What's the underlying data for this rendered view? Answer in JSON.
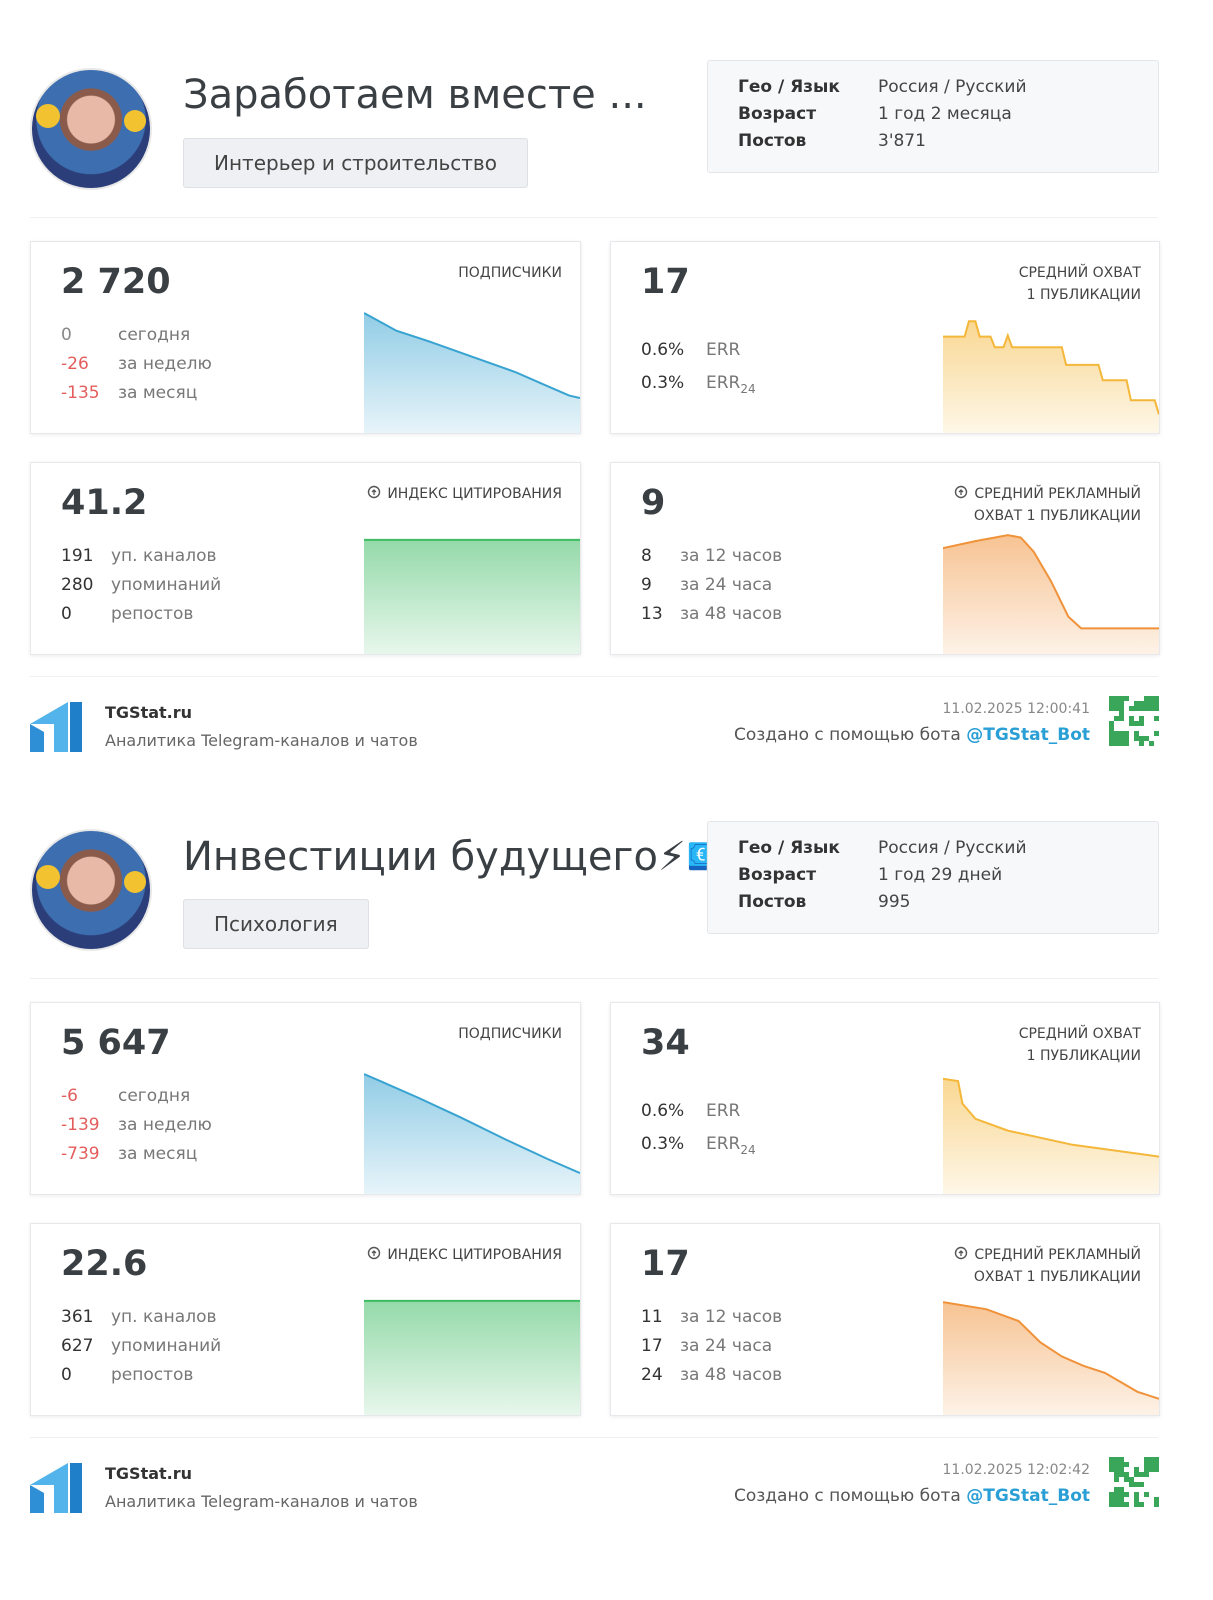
{
  "reports": [
    {
      "channel": {
        "title": "Заработаем вместе ...",
        "category": "Интерьер и строительство"
      },
      "info": [
        {
          "label": "Гео / Язык",
          "value": "Россия / Русский"
        },
        {
          "label": "Возраст",
          "value": "1 год 2 месяца"
        },
        {
          "label": "Постов",
          "value": "3'871"
        }
      ],
      "subscribers": {
        "label": [
          "ПОДПИСЧИКИ"
        ],
        "total": "2 720",
        "rows": [
          {
            "value": 0,
            "label": "сегодня"
          },
          {
            "value": -26,
            "label": "за неделю"
          },
          {
            "value": -135,
            "label": "за месяц"
          }
        ]
      },
      "reach": {
        "label": [
          "СРЕДНИЙ ОХВАТ",
          "1 ПУБЛИКАЦИИ"
        ],
        "total": 17,
        "rows": [
          {
            "value": "0.6%",
            "label": "ERR"
          },
          {
            "value": "0.3%",
            "label": "ERR",
            "sub": 24
          }
        ]
      },
      "citation": {
        "label": [
          "ИНДЕКС ЦИТИРОВАНИЯ"
        ],
        "total": 41.2,
        "rows": [
          {
            "value": 191,
            "label": "уп. каналов"
          },
          {
            "value": 280,
            "label": "упоминаний"
          },
          {
            "value": 0,
            "label": "репостов"
          }
        ]
      },
      "ad_reach": {
        "label": [
          "СРЕДНИЙ РЕКЛАМНЫЙ",
          "ОХВАТ 1 ПУБЛИКАЦИИ"
        ],
        "total": 9,
        "rows": [
          {
            "value": 8,
            "label": "за 12 часов"
          },
          {
            "value": 9,
            "label": "за 24 часа"
          },
          {
            "value": 13,
            "label": "за 48 часов"
          }
        ]
      },
      "footer": {
        "brand": "TGStat.ru",
        "tagline": "Аналитика Telegram-каналов и чатов",
        "timestamp": "11.02.2025 12:00:41",
        "credit": "Создано с помощью бота",
        "bot": "@TGStat_Bot"
      }
    },
    {
      "channel": {
        "title": "Инвестиции будущего⚡💶",
        "category": "Психология"
      },
      "info": [
        {
          "label": "Гео / Язык",
          "value": "Россия / Русский"
        },
        {
          "label": "Возраст",
          "value": "1 год 29 дней"
        },
        {
          "label": "Постов",
          "value": 995
        }
      ],
      "subscribers": {
        "label": [
          "ПОДПИСЧИКИ"
        ],
        "total": "5 647",
        "rows": [
          {
            "value": -6,
            "label": "сегодня"
          },
          {
            "value": -139,
            "label": "за неделю"
          },
          {
            "value": -739,
            "label": "за месяц"
          }
        ]
      },
      "reach": {
        "label": [
          "СРЕДНИЙ ОХВАТ",
          "1 ПУБЛИКАЦИИ"
        ],
        "total": 34,
        "rows": [
          {
            "value": "0.6%",
            "label": "ERR"
          },
          {
            "value": "0.3%",
            "label": "ERR",
            "sub": 24
          }
        ]
      },
      "citation": {
        "label": [
          "ИНДЕКС ЦИТИРОВАНИЯ"
        ],
        "total": 22.6,
        "rows": [
          {
            "value": 361,
            "label": "уп. каналов"
          },
          {
            "value": 627,
            "label": "упоминаний"
          },
          {
            "value": 0,
            "label": "репостов"
          }
        ]
      },
      "ad_reach": {
        "label": [
          "СРЕДНИЙ РЕКЛАМНЫЙ",
          "ОХВАТ 1 ПУБЛИКАЦИИ"
        ],
        "total": 17,
        "rows": [
          {
            "value": 11,
            "label": "за 12 часов"
          },
          {
            "value": 17,
            "label": "за 24 часа"
          },
          {
            "value": 24,
            "label": "за 48 часов"
          }
        ]
      },
      "footer": {
        "brand": "TGStat.ru",
        "tagline": "Аналитика Telegram-каналов и чатов",
        "timestamp": "11.02.2025 12:02:42",
        "credit": "Создано с помощью бота",
        "bot": "@TGStat_Bot"
      }
    }
  ]
}
